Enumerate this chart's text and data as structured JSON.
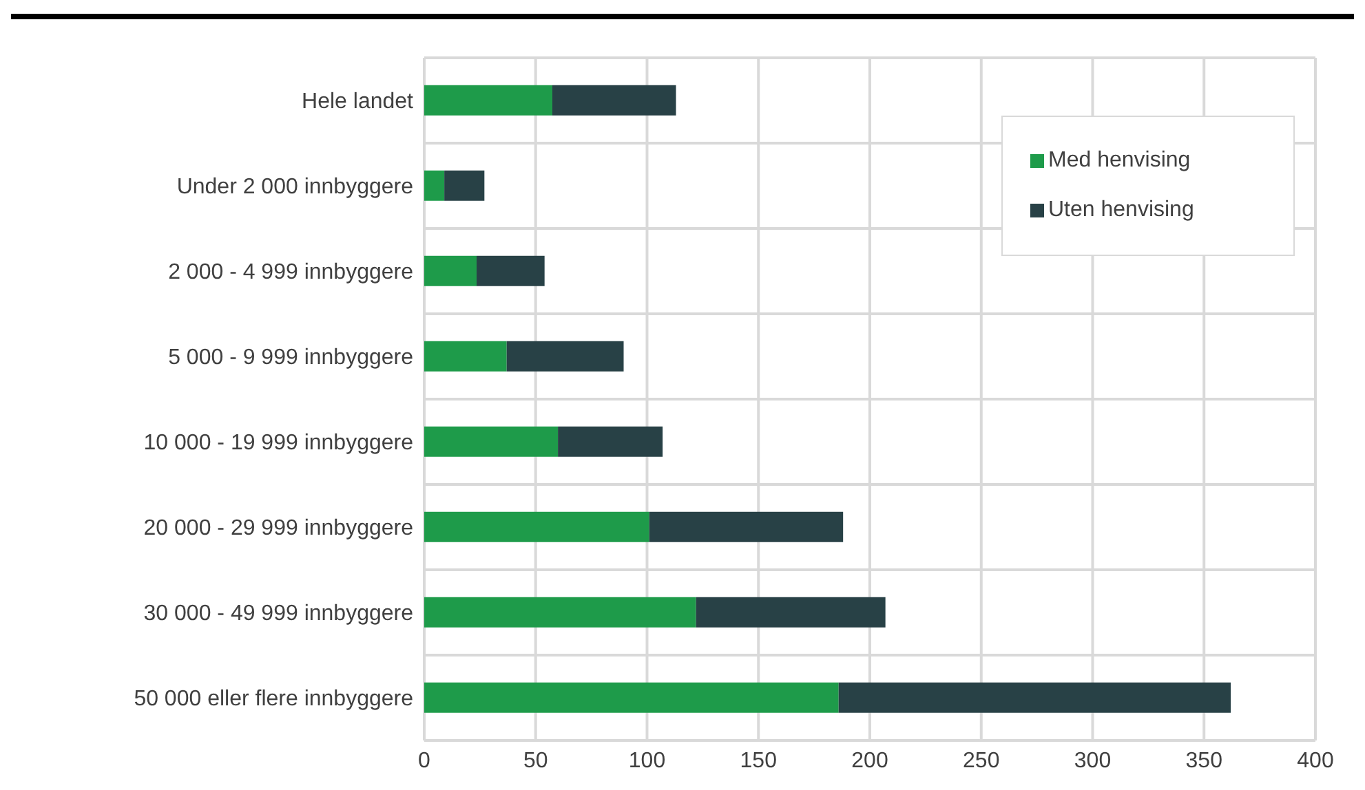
{
  "chart_data": {
    "type": "bar",
    "orientation": "horizontal",
    "stacked": true,
    "categories": [
      "Hele landet",
      "Under 2 000 innbyggere",
      "2 000 - 4 999 innbyggere",
      "5 000 - 9 999 innbyggere",
      "10 000 - 19 999 innbyggere",
      "20 000 - 29 999 innbyggere",
      "30 000 - 49 999 innbyggere",
      "50 000 eller flere innbyggere"
    ],
    "series": [
      {
        "name": "Med henvising",
        "color": "#1e9b4a",
        "values": [
          57.5,
          9,
          23.5,
          37,
          60,
          101,
          122,
          186
        ]
      },
      {
        "name": "Uten henvising",
        "color": "#284146",
        "values": [
          55.5,
          18,
          30.5,
          52.5,
          47,
          87,
          85,
          176
        ]
      }
    ],
    "xlim": [
      0,
      400
    ],
    "xticks": [
      0,
      50,
      100,
      150,
      200,
      250,
      300,
      350,
      400
    ],
    "grid": true,
    "legend": "top right"
  }
}
